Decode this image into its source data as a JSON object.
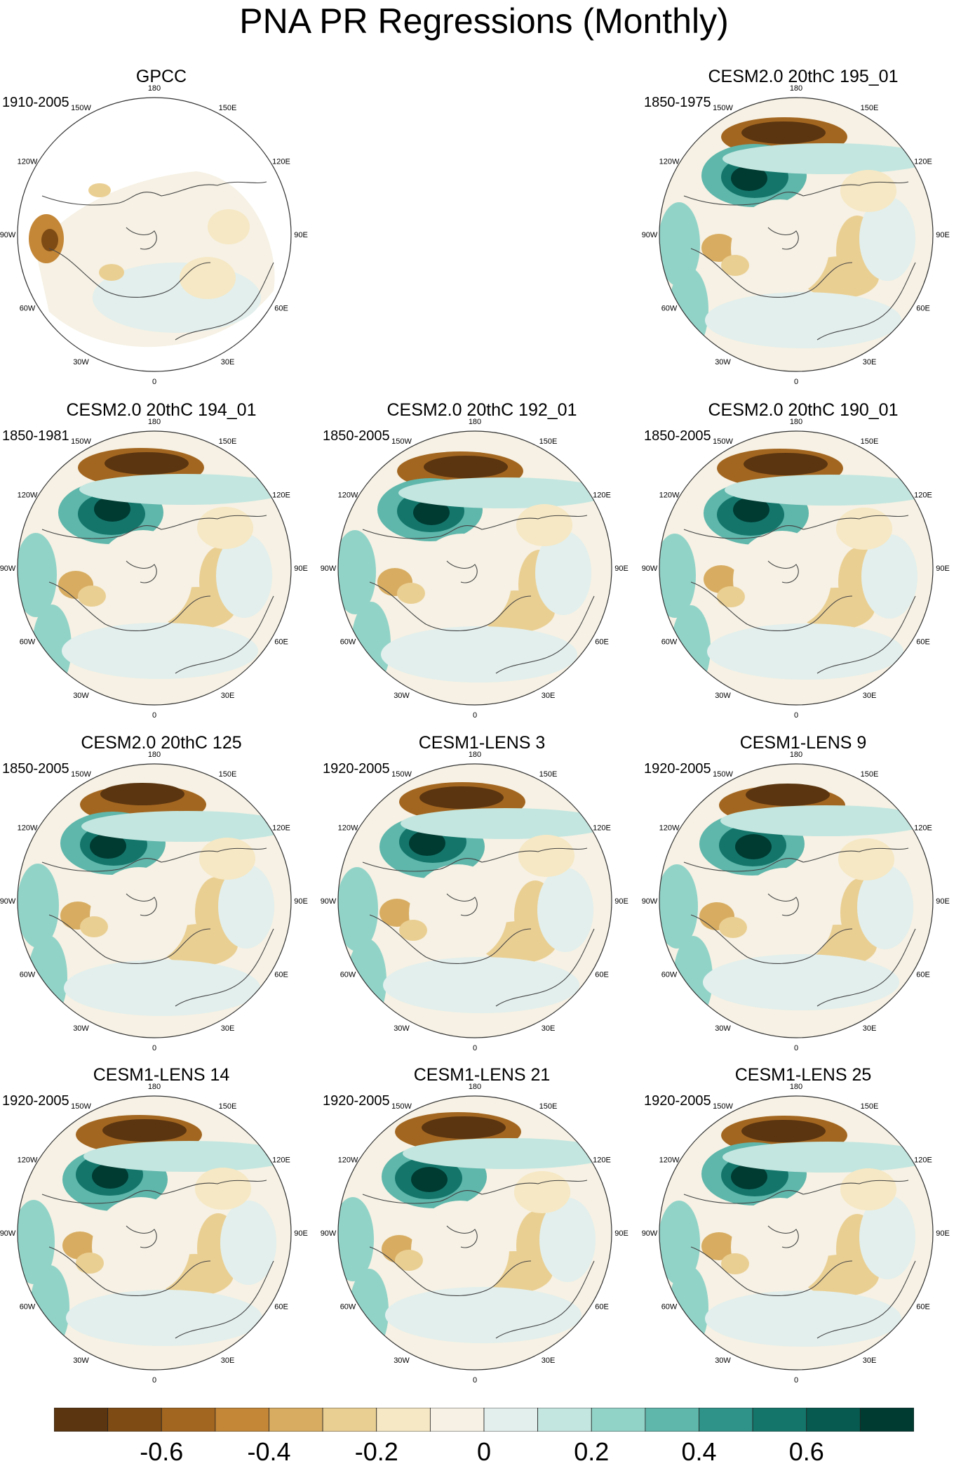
{
  "title": "PNA PR Regressions (Monthly)",
  "lon_labels": [
    "180",
    "150E",
    "120E",
    "90E",
    "60E",
    "30E",
    "0",
    "30W",
    "60W",
    "90W",
    "120W",
    "150W"
  ],
  "colormap": {
    "colors": [
      "#5a3510",
      "#7e4b14",
      "#a36620",
      "#c48738",
      "#d8ad62",
      "#eacf93",
      "#f6e8c4",
      "#f6f1e4",
      "#e2efed",
      "#c3e6e0",
      "#92d3c8",
      "#5fb6ab",
      "#2f9389",
      "#14766b",
      "#065a4f",
      "#003b32"
    ],
    "tick_labels": [
      "-0.6",
      "-0.4",
      "-0.2",
      "0",
      "0.2",
      "0.4",
      "0.6"
    ],
    "tick_values": [
      -0.6,
      -0.4,
      -0.2,
      0,
      0.2,
      0.4,
      0.6
    ],
    "range": [
      -0.8,
      0.8
    ]
  },
  "panels": [
    {
      "title": "GPCC",
      "period": "1910-2005",
      "observed": true
    },
    {
      "title": "CESM2.0 20thC 195_01",
      "period": "1850-1975"
    },
    {
      "title": "CESM2.0 20thC 194_01",
      "period": "1850-1981"
    },
    {
      "title": "CESM2.0 20thC 192_01",
      "period": "1850-2005"
    },
    {
      "title": "CESM2.0 20thC 190_01",
      "period": "1850-2005"
    },
    {
      "title": "CESM2.0 20thC 125",
      "period": "1850-2005"
    },
    {
      "title": "CESM1-LENS 3",
      "period": "1920-2005"
    },
    {
      "title": "CESM1-LENS 9",
      "period": "1920-2005"
    },
    {
      "title": "CESM1-LENS 14",
      "period": "1920-2005"
    },
    {
      "title": "CESM1-LENS 21",
      "period": "1920-2005"
    },
    {
      "title": "CESM1-LENS 25",
      "period": "1920-2005"
    }
  ]
}
